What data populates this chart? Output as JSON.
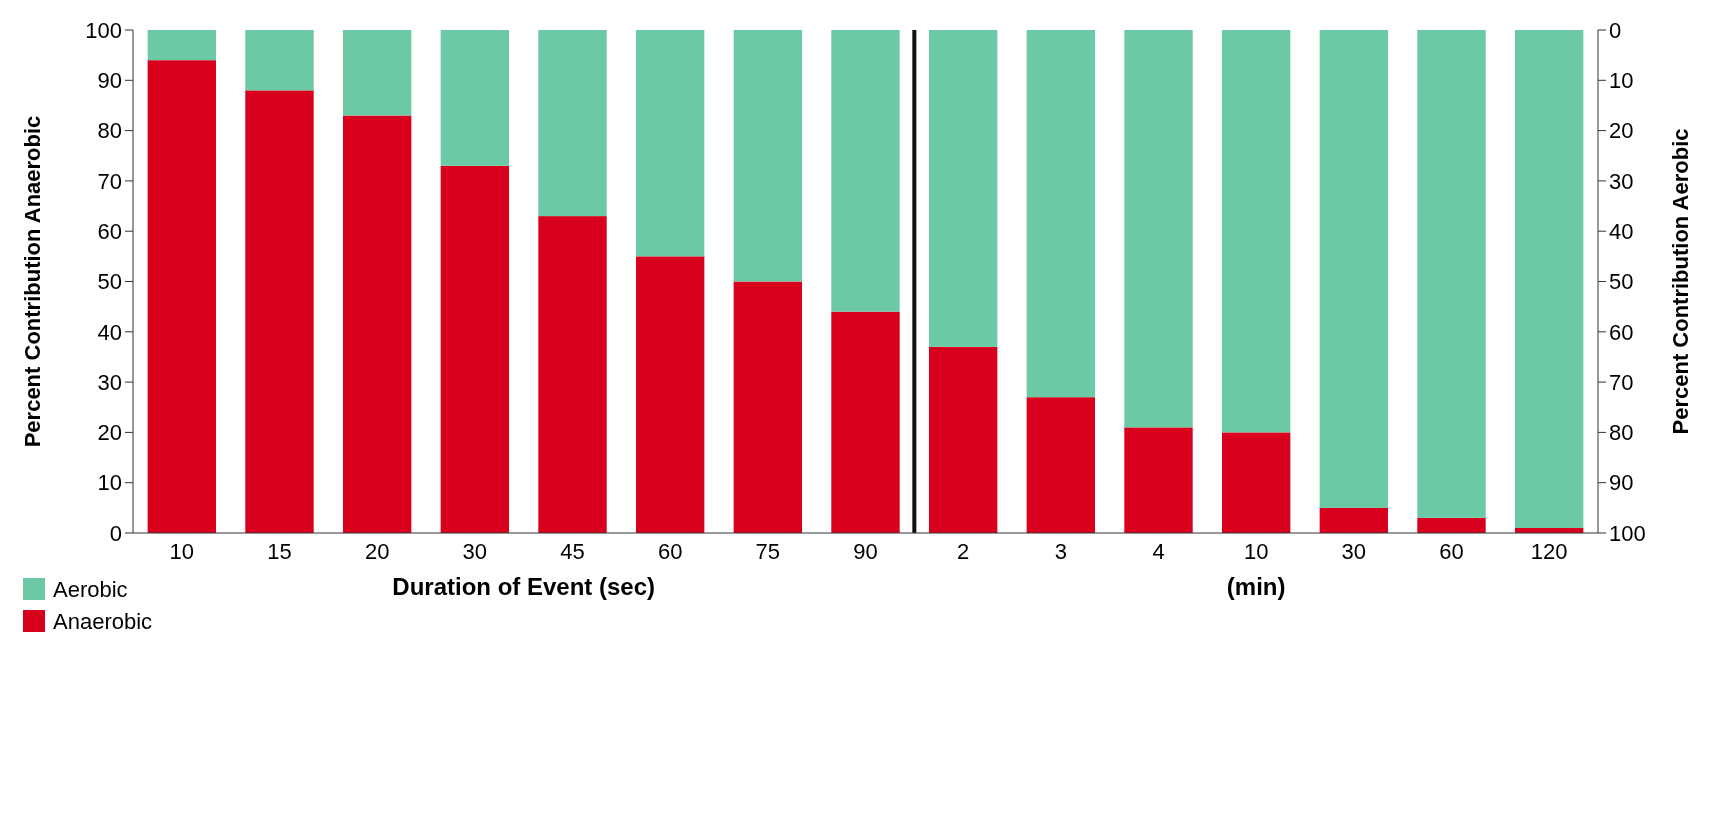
{
  "chart_data": {
    "type": "bar",
    "stacked": true,
    "xlabel": "Duration of Event (sec)",
    "ylabel": "Percent Contribution Anaerobic",
    "y2label": "Percent Contribution Aerobic",
    "categories": [
      "10",
      "15",
      "20",
      "30",
      "45",
      "60",
      "75",
      "90",
      "2",
      "3",
      "4",
      "10",
      "30",
      "60",
      "120"
    ],
    "series": [
      {
        "name": "Anaerobic",
        "color": "#d8001c",
        "values": [
          94,
          88,
          83,
          73,
          63,
          55,
          50,
          44,
          37,
          27,
          21,
          20,
          5,
          3,
          1
        ]
      },
      {
        "name": "Aerobic",
        "color": "#6cc9a6",
        "values": [
          6,
          12,
          17,
          27,
          37,
          45,
          50,
          56,
          63,
          73,
          79,
          80,
          95,
          97,
          99
        ]
      }
    ],
    "ylim": [
      0,
      100
    ],
    "yticks": [
      0,
      10,
      20,
      30,
      40,
      50,
      60,
      70,
      80,
      90,
      100
    ],
    "y2lim": [
      100,
      0
    ],
    "y2ticks": [
      0,
      10,
      20,
      30,
      40,
      50,
      60,
      70,
      80,
      90,
      100
    ],
    "annotations": [
      "(min)"
    ],
    "legend": "bottom left"
  }
}
